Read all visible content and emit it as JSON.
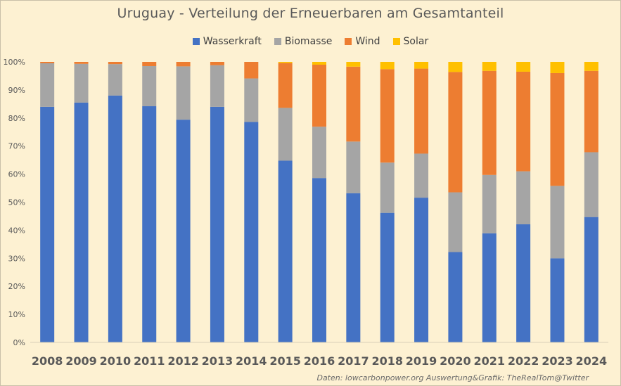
{
  "chart_data": {
    "type": "bar",
    "stacked": true,
    "normalized": true,
    "title": "Uruguay - Verteilung der Erneuerbaren am Gesamtanteil",
    "xlabel": "",
    "ylabel": "",
    "ylim": [
      0,
      100
    ],
    "yticks": [
      "0%",
      "10%",
      "20%",
      "30%",
      "40%",
      "50%",
      "60%",
      "70%",
      "80%",
      "90%",
      "100%"
    ],
    "legend_position": "top",
    "grid": false,
    "categories": [
      "2008",
      "2009",
      "2010",
      "2011",
      "2012",
      "2013",
      "2014",
      "2015",
      "2016",
      "2017",
      "2018",
      "2019",
      "2020",
      "2021",
      "2022",
      "2023",
      "2024"
    ],
    "series": [
      {
        "name": "Wasserkraft",
        "color": "#4472c4",
        "values": [
          84,
          85.5,
          88,
          84.2,
          79.4,
          84,
          78.6,
          64.8,
          58.6,
          53.2,
          46.2,
          51.6,
          32.2,
          38.9,
          42.1,
          30,
          44.7
        ]
      },
      {
        "name": "Biomasse",
        "color": "#a5a5a5",
        "values": [
          15.5,
          13.8,
          11.2,
          14.3,
          19,
          14.8,
          15.5,
          18.8,
          18.3,
          18.4,
          17.9,
          15.7,
          21.3,
          20.8,
          18.9,
          25.8,
          23.1
        ]
      },
      {
        "name": "Wind",
        "color": "#ed7d31",
        "values": [
          0.5,
          0.7,
          0.8,
          1.5,
          1.6,
          1.2,
          5.9,
          16,
          22.1,
          26.7,
          33.3,
          30.3,
          42.9,
          37.1,
          35.5,
          40.2,
          29
        ]
      },
      {
        "name": "Solar",
        "color": "#ffc000",
        "values": [
          0,
          0,
          0,
          0,
          0,
          0,
          0,
          0.4,
          1,
          1.7,
          2.6,
          2.4,
          3.6,
          3.2,
          3.5,
          4,
          3.2
        ]
      }
    ]
  },
  "source_credit": "Daten: lowcarbonpower.org  Auswertung&Grafik: TheRealTom@Twitter"
}
